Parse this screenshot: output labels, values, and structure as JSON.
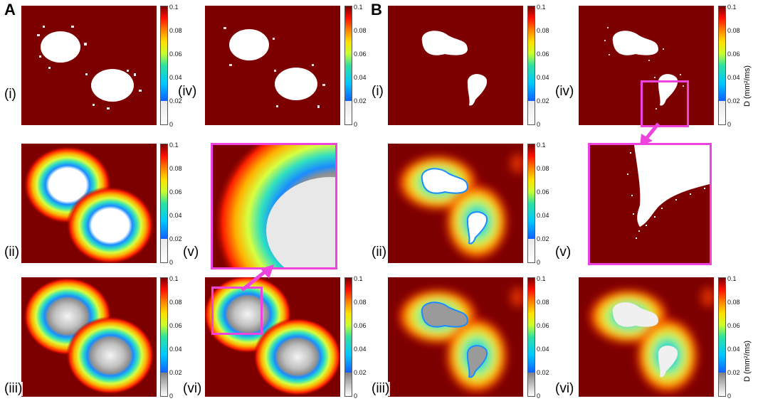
{
  "figure": {
    "section_a_label": "A",
    "section_b_label": "B"
  },
  "colorbar": {
    "ticks": [
      "0.1",
      "0.08",
      "0.06",
      "0.04",
      "0.02",
      "0"
    ],
    "d_label": "D (mm²/ms)"
  },
  "panels": {
    "a_i": {
      "label": "(i)"
    },
    "a_ii": {
      "label": "(ii)"
    },
    "a_iii": {
      "label": "(iii)"
    },
    "a_iv": {
      "label": "(iv)"
    },
    "a_v": {
      "label": "(v)"
    },
    "a_vi": {
      "label": "(vi)"
    },
    "b_i": {
      "label": "(i)"
    },
    "b_ii": {
      "label": "(ii)"
    },
    "b_iii": {
      "label": "(iii)"
    },
    "b_iv": {
      "label": "(iv)"
    },
    "b_v": {
      "label": "(v)"
    },
    "b_vi": {
      "label": "(vi)"
    }
  },
  "colors": {
    "background_map": "#7d0000",
    "highlight_box": "#ee44dd"
  }
}
